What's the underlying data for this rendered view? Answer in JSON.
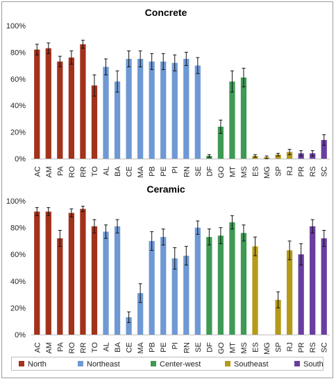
{
  "colors": {
    "North": "#a3321c",
    "Northeast": "#6f99d4",
    "Center-west": "#3f9a54",
    "Southeast": "#b59a1a",
    "South": "#6a3ea0"
  },
  "legend": [
    {
      "name": "North",
      "color": "#a3321c"
    },
    {
      "name": "Northeast",
      "color": "#6f99d4"
    },
    {
      "name": "Center-west",
      "color": "#3f9a54"
    },
    {
      "name": "Southeast",
      "color": "#b59a1a"
    },
    {
      "name": "South",
      "color": "#6a3ea0"
    }
  ],
  "chart_data": [
    {
      "type": "bar",
      "title": "Concrete",
      "categories": [
        "AC",
        "AM",
        "PA",
        "RO",
        "RR",
        "TO",
        "AL",
        "BA",
        "CE",
        "MA",
        "PB",
        "PE",
        "PI",
        "RN",
        "SE",
        "DF",
        "GO",
        "MT",
        "MS",
        "ES",
        "MG",
        "SP",
        "RJ",
        "PR",
        "RS",
        "SC"
      ],
      "regions": [
        "North",
        "North",
        "North",
        "North",
        "North",
        "North",
        "Northeast",
        "Northeast",
        "Northeast",
        "Northeast",
        "Northeast",
        "Northeast",
        "Northeast",
        "Northeast",
        "Northeast",
        "Center-west",
        "Center-west",
        "Center-west",
        "Center-west",
        "Southeast",
        "Southeast",
        "Southeast",
        "Southeast",
        "South",
        "South",
        "South"
      ],
      "values": [
        82,
        83,
        73,
        76,
        86,
        55,
        69,
        58,
        75,
        75,
        73,
        73,
        72,
        75,
        70,
        2,
        24,
        58,
        61,
        2,
        1,
        3,
        5,
        4,
        4,
        14
      ],
      "errors": [
        4,
        4,
        4,
        5,
        3,
        8,
        6,
        8,
        6,
        6,
        6,
        6,
        6,
        5,
        6,
        1,
        5,
        8,
        7,
        1,
        1,
        1,
        2,
        2,
        2,
        4
      ],
      "yticks": [
        "0%",
        "20%",
        "40%",
        "60%",
        "80%",
        "100%"
      ],
      "ylim": [
        0,
        100
      ]
    },
    {
      "type": "bar",
      "title": "Ceramic",
      "categories": [
        "AC",
        "AM",
        "PA",
        "RO",
        "RR",
        "TO",
        "AL",
        "BA",
        "CE",
        "MA",
        "PB",
        "PE",
        "PI",
        "RN",
        "SE",
        "DF",
        "GO",
        "MT",
        "MS",
        "ES",
        "MG",
        "SP",
        "RJ",
        "PR",
        "RS",
        "SC"
      ],
      "regions": [
        "North",
        "North",
        "North",
        "North",
        "North",
        "North",
        "Northeast",
        "Northeast",
        "Northeast",
        "Northeast",
        "Northeast",
        "Northeast",
        "Northeast",
        "Northeast",
        "Northeast",
        "Center-west",
        "Center-west",
        "Center-west",
        "Center-west",
        "Southeast",
        "Southeast",
        "Southeast",
        "Southeast",
        "South",
        "South",
        "South"
      ],
      "values": [
        92,
        92,
        72,
        91,
        94,
        81,
        77,
        81,
        13,
        31,
        70,
        73,
        57,
        59,
        80,
        73,
        74,
        84,
        76,
        66,
        0,
        26,
        63,
        60,
        81,
        72
      ],
      "errors": [
        3,
        3,
        6,
        3,
        2,
        5,
        5,
        5,
        4,
        7,
        7,
        6,
        8,
        7,
        5,
        6,
        6,
        5,
        6,
        7,
        0,
        6,
        7,
        8,
        5,
        6
      ],
      "yticks": [
        "0%",
        "20%",
        "40%",
        "60%",
        "80%",
        "100%"
      ],
      "ylim": [
        0,
        100
      ]
    }
  ]
}
